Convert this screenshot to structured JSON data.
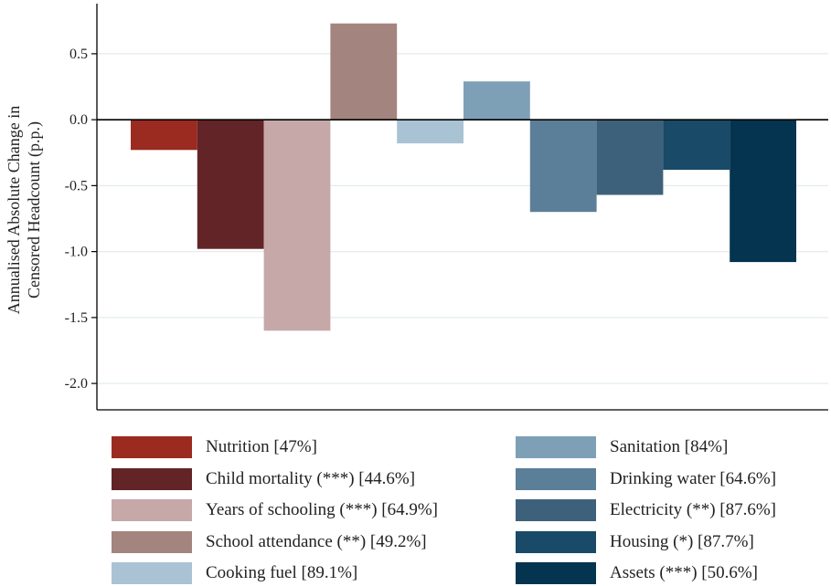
{
  "chart_data": {
    "type": "bar",
    "title": "",
    "xlabel": "",
    "ylabel_lines": [
      "Annualised Absolute Change in",
      "Censored Headcount (p.p.)"
    ],
    "ylim": [
      -2.2,
      0.88
    ],
    "yticks": [
      0.5,
      0.0,
      -0.5,
      -1.0,
      -1.5,
      -2.0
    ],
    "ytick_labels": [
      "0.5",
      "0.0",
      "-0.5",
      "-1.0",
      "-1.5",
      "-2.0"
    ],
    "grid": true,
    "legend_position": "bottom",
    "categories": [
      "Nutrition [47%]",
      "Child mortality (***) [44.6%]",
      "Years of schooling (***) [64.9%]",
      "School attendance (**) [49.2%]",
      "Cooking fuel [89.1%]",
      "Sanitation [84%]",
      "Drinking water [64.6%]",
      "Electricity (**) [87.6%]",
      "Housing (*) [87.7%]",
      "Assets (***) [50.6%]"
    ],
    "values": [
      -0.23,
      -0.98,
      -1.6,
      0.73,
      -0.18,
      0.29,
      -0.7,
      -0.57,
      -0.38,
      -1.08
    ],
    "colors": [
      "#9b2a20",
      "#632427",
      "#c6a8a9",
      "#a4847e",
      "#a9c3d5",
      "#7ea0b6",
      "#5b7f98",
      "#3e617b",
      "#194a68",
      "#04344f"
    ]
  }
}
